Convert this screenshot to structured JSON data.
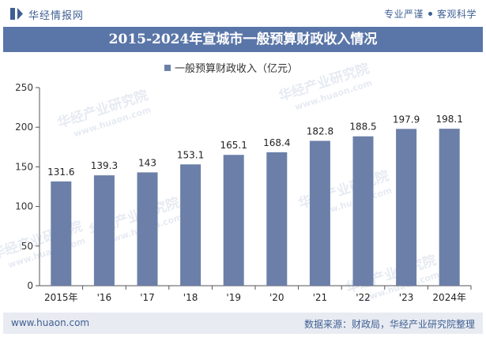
{
  "header": {
    "brand": "华经情报网",
    "tagline_left": "专业严谨",
    "tagline_right": "客观科学",
    "logo_icon": "huajing-logo-icon"
  },
  "title": "2015-2024年宣城市一般预算财政收入情况",
  "footer": {
    "site": "www.huaon.com",
    "source": "数据来源：财政局，华经产业研究院整理"
  },
  "watermark": {
    "text": "华经产业研究院",
    "url": "www.huaon.com"
  },
  "colors": {
    "bar": "#6b7fa8",
    "title_band": "#5a76a8",
    "brand": "#3f5f93"
  },
  "chart_data": {
    "type": "bar",
    "categories": [
      "2015年",
      "'16",
      "'17",
      "'18",
      "'19",
      "'20",
      "'21",
      "'22",
      "'23",
      "2024年"
    ],
    "series": [
      {
        "name": "一般预算财政收入（亿元）",
        "values": [
          131.6,
          139.3,
          143,
          153.1,
          165.1,
          168.4,
          182.8,
          188.5,
          197.9,
          198.1
        ]
      }
    ],
    "data_labels": [
      "131.6",
      "139.3",
      "143",
      "153.1",
      "165.1",
      "168.4",
      "182.8",
      "188.5",
      "197.9",
      "198.1"
    ],
    "ylim": [
      0,
      250
    ],
    "yticks": [
      0,
      50,
      100,
      150,
      200,
      250
    ],
    "legend": "top-center",
    "grid": false
  }
}
